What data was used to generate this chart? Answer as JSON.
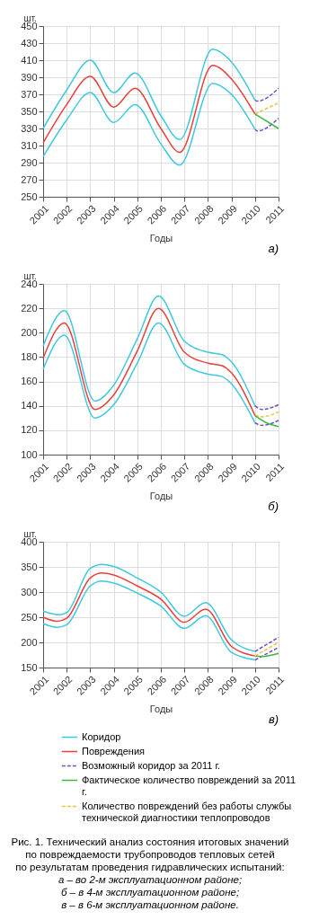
{
  "chart_data": [
    {
      "type": "line",
      "xlabel": "Годы",
      "ylabel": "шт.",
      "annotations": [
        "а)"
      ],
      "xlim": [
        2001,
        2011
      ],
      "xticks": [
        2001,
        2002,
        2003,
        2004,
        2005,
        2006,
        2007,
        2008,
        2009,
        2010,
        2011
      ],
      "ylim": [
        250,
        450
      ],
      "yticks": [
        250,
        270,
        290,
        310,
        330,
        350,
        370,
        390,
        410,
        430,
        450
      ],
      "grid": true,
      "series": [
        {
          "color": "#3ec8e0",
          "line_style": "solid",
          "x": [
            2001,
            2002,
            2003,
            2004,
            2004.9,
            2006,
            2006.8,
            2008.2,
            2009,
            2010
          ],
          "values": [
            330,
            375,
            410,
            372,
            395,
            345,
            317,
            423,
            408,
            363
          ]
        },
        {
          "color": "#e8403a",
          "line_style": "solid",
          "x": [
            2001,
            2002,
            2003,
            2004,
            2004.9,
            2006,
            2006.8,
            2008.2,
            2009,
            2010
          ],
          "values": [
            313,
            358,
            391,
            355,
            377,
            330,
            302,
            404,
            388,
            347
          ]
        },
        {
          "color": "#3ec8e0",
          "line_style": "solid",
          "x": [
            2001,
            2002,
            2003,
            2004,
            2004.9,
            2006,
            2006.8,
            2008.2,
            2009,
            2010
          ],
          "values": [
            297,
            340,
            372,
            337,
            358,
            312,
            287,
            383,
            370,
            329
          ]
        },
        {
          "color": "#6a4fc8",
          "line_style": "dashed",
          "x": [
            2010,
            2010.1,
            2011
          ],
          "values": [
            363,
            362,
            377
          ]
        },
        {
          "color": "#6a4fc8",
          "line_style": "dashed",
          "x": [
            2010,
            2010.1,
            2011
          ],
          "values": [
            329,
            327,
            342
          ]
        },
        {
          "color": "#f0c040",
          "line_style": "dashed",
          "x": [
            2010,
            2011
          ],
          "values": [
            347,
            360
          ]
        },
        {
          "color": "#3cb83c",
          "line_style": "solid",
          "x": [
            2010,
            2011
          ],
          "values": [
            347,
            330
          ]
        }
      ]
    },
    {
      "type": "line",
      "xlabel": "Годы",
      "ylabel": "шт.",
      "annotations": [
        "б)"
      ],
      "xlim": [
        2001,
        2011
      ],
      "xticks": [
        2001,
        2002,
        2003,
        2004,
        2005,
        2006,
        2007,
        2008,
        2009,
        2010,
        2011
      ],
      "ylim": [
        100,
        240
      ],
      "yticks": [
        100,
        120,
        140,
        160,
        180,
        200,
        220,
        240
      ],
      "grid": true,
      "series": [
        {
          "color": "#3ec8e0",
          "line_style": "solid",
          "x": [
            2001,
            2001.9,
            2003.2,
            2004,
            2005,
            2005.9,
            2007,
            2008,
            2008.6,
            2009,
            2010
          ],
          "values": [
            189,
            218,
            144,
            157,
            195,
            230,
            193,
            184,
            182,
            176,
            140
          ]
        },
        {
          "color": "#e8403a",
          "line_style": "solid",
          "x": [
            2001,
            2001.9,
            2003.2,
            2004,
            2005,
            2005.9,
            2007,
            2008,
            2008.6,
            2009,
            2010
          ],
          "values": [
            179,
            208,
            137,
            149,
            185,
            220,
            184,
            175,
            173,
            167,
            132
          ]
        },
        {
          "color": "#3ec8e0",
          "line_style": "solid",
          "x": [
            2001,
            2001.9,
            2003.2,
            2004,
            2005,
            2005.9,
            2007,
            2008,
            2008.6,
            2009,
            2010
          ],
          "values": [
            170,
            198,
            130,
            141,
            175,
            208,
            174,
            166,
            164,
            158,
            126
          ]
        },
        {
          "color": "#6a4fc8",
          "line_style": "dashed",
          "x": [
            2010,
            2010.3,
            2011
          ],
          "values": [
            140,
            137,
            141
          ]
        },
        {
          "color": "#6a4fc8",
          "line_style": "dashed",
          "x": [
            2010,
            2010.3,
            2011
          ],
          "values": [
            126,
            124,
            128
          ]
        },
        {
          "color": "#f0c040",
          "line_style": "dashed",
          "x": [
            2010,
            2010.3,
            2011
          ],
          "values": [
            132,
            131,
            135
          ]
        },
        {
          "color": "#3cb83c",
          "line_style": "solid",
          "x": [
            2010,
            2010.5,
            2011
          ],
          "values": [
            132,
            126,
            123
          ]
        }
      ]
    },
    {
      "type": "line",
      "xlabel": "Годы",
      "ylabel": "шт.",
      "annotations": [
        "в)",
        "Рис. 1. Технический анализ состояния итоговых значений",
        "по повреждаемости трубопроводов тепловых сетей",
        "по результатам проведения гидравлических испытаний:",
        "а – во 2-м эксплуатационном районе;",
        "б – в 4-м эксплуатационном районе;",
        "в – в 6-м эксплуатационном районе."
      ],
      "xlim": [
        2001,
        2011
      ],
      "xticks": [
        2001,
        2002,
        2003,
        2004,
        2005,
        2006,
        2007,
        2008,
        2009,
        2010,
        2011
      ],
      "ylim": [
        150,
        400
      ],
      "yticks": [
        150,
        200,
        250,
        300,
        350,
        400
      ],
      "grid": true,
      "legend": "bottom",
      "series": [
        {
          "name": "Коридор",
          "color": "#3ec8e0",
          "line_style": "solid",
          "x": [
            2001,
            2001.7,
            2002,
            2003,
            2003.5,
            2004,
            2005,
            2006,
            2007,
            2007.9,
            2009,
            2010
          ],
          "values": [
            262,
            255,
            259,
            347,
            355,
            351,
            328,
            300,
            252,
            279,
            205,
            182
          ]
        },
        {
          "name": "Повреждения",
          "color": "#e8403a",
          "line_style": "solid",
          "x": [
            2001,
            2001.6,
            2002,
            2003,
            2003.5,
            2004,
            2005,
            2006,
            2007,
            2007.9,
            2009,
            2010
          ],
          "values": [
            250,
            242,
            248,
            328,
            338,
            334,
            312,
            286,
            240,
            266,
            192,
            173
          ]
        },
        {
          "color": "#3ec8e0",
          "line_style": "solid",
          "x": [
            2001,
            2001.6,
            2002,
            2003,
            2003.5,
            2004,
            2005,
            2006,
            2007,
            2007.9,
            2009,
            2010
          ],
          "values": [
            237,
            230,
            235,
            312,
            322,
            318,
            298,
            272,
            228,
            253,
            180,
            165
          ]
        },
        {
          "name": "Возможный коридор за 2011 г.",
          "color": "#6a4fc8",
          "line_style": "dashed",
          "x": [
            2010,
            2011
          ],
          "values": [
            182,
            210
          ]
        },
        {
          "color": "#6a4fc8",
          "line_style": "dashed",
          "x": [
            2010,
            2011
          ],
          "values": [
            165,
            190
          ]
        },
        {
          "name": "Фактическое количество повреждений за 2011 г.",
          "color": "#3cb83c",
          "line_style": "solid",
          "x": [
            2010,
            2010.3,
            2011
          ],
          "values": [
            173,
            172,
            178
          ]
        },
        {
          "name": "Количество повреждений без работы службы технической диагностики теплопроводов",
          "color": "#f0c040",
          "line_style": "dashed",
          "x": [
            2010,
            2011
          ],
          "values": [
            173,
            200
          ]
        }
      ]
    }
  ]
}
